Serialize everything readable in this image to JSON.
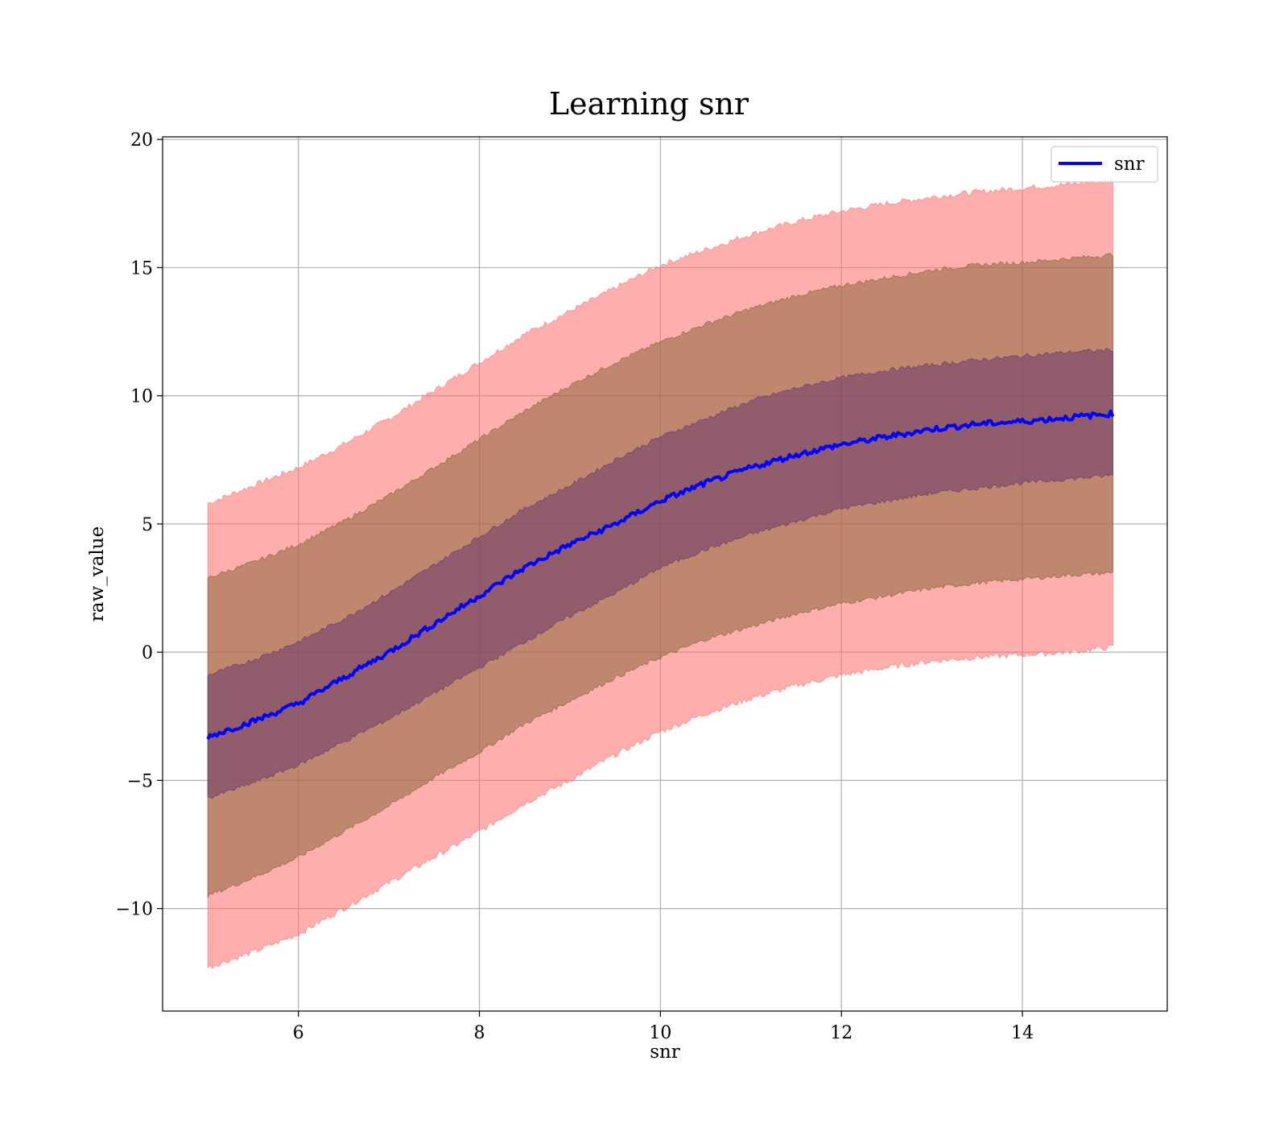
{
  "chart_data": {
    "type": "area",
    "title": "Learning snr",
    "xlabel": "snr",
    "ylabel": "raw_value",
    "xlim": [
      4.5,
      15.6
    ],
    "ylim": [
      -14.0,
      20.1
    ],
    "xticks": [
      6,
      8,
      10,
      12,
      14
    ],
    "yticks": [
      -10,
      -5,
      0,
      5,
      10,
      15,
      20
    ],
    "xtick_labels": [
      "6",
      "8",
      "10",
      "12",
      "14"
    ],
    "ytick_labels": [
      "−10",
      "−5",
      "0",
      "5",
      "10",
      "15",
      "20"
    ],
    "grid": true,
    "legend": {
      "position": "top-right",
      "entries": [
        "snr"
      ]
    },
    "colors": {
      "line": "#0000ff",
      "band_outer": "#ff6b6b",
      "band_mid": "#8b6a3a",
      "band_inner": "#6b3a6b",
      "band_outer_edge": "#ff8080",
      "band_mid_edge": "#8b6a3a",
      "band_inner_edge": "#6b3a78"
    },
    "x": [
      5.0,
      5.5,
      6.0,
      6.5,
      7.0,
      7.5,
      8.0,
      8.5,
      9.0,
      9.5,
      10.0,
      10.5,
      11.0,
      11.5,
      12.0,
      12.5,
      13.0,
      13.5,
      14.0,
      14.5,
      15.0
    ],
    "series": [
      {
        "name": "snr",
        "values": [
          -3.3,
          -2.7,
          -2.0,
          -1.0,
          0.0,
          1.1,
          2.2,
          3.3,
          4.2,
          5.0,
          5.9,
          6.6,
          7.2,
          7.7,
          8.1,
          8.4,
          8.7,
          8.9,
          9.0,
          9.15,
          9.3
        ]
      }
    ],
    "bands": [
      {
        "level": "outer",
        "lower": [
          -12.3,
          -11.7,
          -11.0,
          -10.0,
          -9.0,
          -8.0,
          -7.0,
          -5.9,
          -5.0,
          -4.0,
          -3.1,
          -2.4,
          -1.8,
          -1.3,
          -0.9,
          -0.6,
          -0.35,
          -0.2,
          -0.1,
          0.0,
          0.2
        ],
        "upper": [
          5.8,
          6.5,
          7.2,
          8.1,
          9.1,
          10.2,
          11.3,
          12.4,
          13.3,
          14.2,
          15.1,
          15.7,
          16.3,
          16.8,
          17.2,
          17.5,
          17.75,
          17.95,
          18.1,
          18.25,
          18.4
        ]
      },
      {
        "level": "mid",
        "lower": [
          -9.5,
          -8.8,
          -8.0,
          -7.0,
          -6.0,
          -4.9,
          -3.9,
          -2.8,
          -1.9,
          -1.0,
          -0.2,
          0.5,
          1.0,
          1.5,
          1.9,
          2.2,
          2.5,
          2.7,
          2.85,
          3.0,
          3.1
        ],
        "upper": [
          2.9,
          3.5,
          4.2,
          5.1,
          6.1,
          7.2,
          8.3,
          9.4,
          10.4,
          11.3,
          12.1,
          12.8,
          13.4,
          13.9,
          14.3,
          14.6,
          14.9,
          15.1,
          15.2,
          15.35,
          15.5
        ]
      },
      {
        "level": "inner",
        "lower": [
          -5.7,
          -5.1,
          -4.4,
          -3.5,
          -2.6,
          -1.6,
          -0.6,
          0.4,
          1.4,
          2.3,
          3.3,
          4.0,
          4.6,
          5.1,
          5.6,
          5.9,
          6.2,
          6.4,
          6.6,
          6.75,
          6.9
        ],
        "upper": [
          -0.9,
          -0.3,
          0.4,
          1.3,
          2.3,
          3.4,
          4.5,
          5.6,
          6.5,
          7.5,
          8.4,
          9.1,
          9.8,
          10.3,
          10.7,
          11.0,
          11.2,
          11.4,
          11.55,
          11.7,
          11.8
        ]
      }
    ]
  }
}
